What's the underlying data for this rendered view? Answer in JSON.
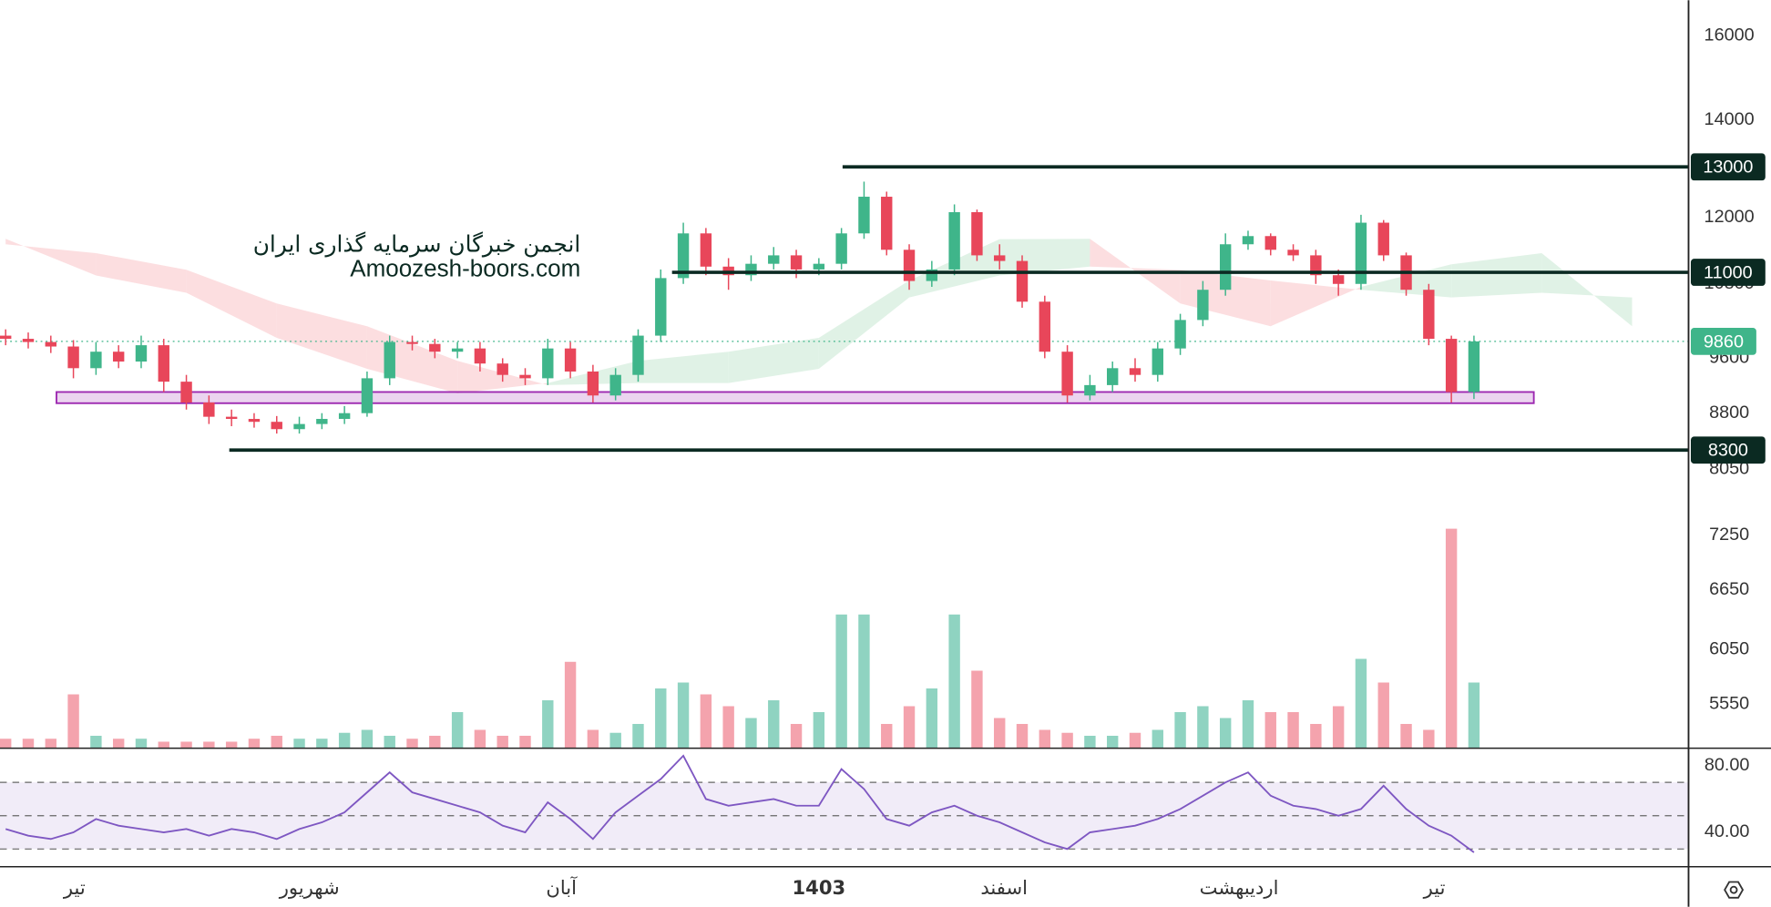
{
  "chart_data": {
    "type": "candlestick",
    "xlim": [
      -0.25,
      74.5
    ],
    "x_labels": [
      {
        "value": 3.05,
        "label": "تیر"
      },
      {
        "value": 13.45,
        "label": "شهریور"
      },
      {
        "value": 24.6,
        "label": "آبان"
      },
      {
        "value": 36,
        "label": "1403",
        "bold": true
      },
      {
        "value": 44.2,
        "label": "اسفند"
      },
      {
        "value": 54.6,
        "label": "اردیبهشت"
      },
      {
        "value": 63.25,
        "label": "تیر"
      }
    ],
    "ylim": [
      5180,
      16930
    ],
    "log_scale": true,
    "yticks": [
      5550,
      6050,
      6650,
      7250,
      8050,
      8800,
      9600,
      10800,
      12000,
      14000,
      16000
    ],
    "up_color": "#3fb58a",
    "down_color": "#e8465a",
    "open": [
      9950,
      9900,
      9850,
      9780,
      9450,
      9700,
      9550,
      9800,
      9250,
      8950,
      8750,
      8720,
      8680,
      8580,
      8650,
      8720,
      8800,
      9300,
      9850,
      9820,
      9700,
      9750,
      9520,
      9350,
      9300,
      9750,
      9400,
      9050,
      9350,
      9950,
      10900,
      11700,
      11100,
      10950,
      11150,
      11300,
      11050,
      11150,
      11700,
      12400,
      11400,
      10850,
      11050,
      12100,
      11300,
      11200,
      10500,
      9700,
      9050,
      9200,
      9450,
      9350,
      9750,
      10200,
      10700,
      11500,
      11650,
      11400,
      11300,
      10950,
      10800,
      11900,
      11300,
      10700,
      9900,
      9100
    ],
    "high": [
      10050,
      10000,
      9950,
      9880,
      9850,
      9800,
      9950,
      9900,
      9350,
      9050,
      8850,
      8800,
      8760,
      8750,
      8800,
      8900,
      9400,
      9950,
      9950,
      9900,
      9850,
      9850,
      9600,
      9450,
      9900,
      9850,
      9500,
      9450,
      10050,
      11050,
      11900,
      11800,
      11250,
      11300,
      11450,
      11400,
      11250,
      11800,
      12700,
      12500,
      11500,
      11200,
      12250,
      12150,
      11500,
      11300,
      10600,
      9800,
      9350,
      9550,
      9600,
      9850,
      10300,
      10850,
      11700,
      11750,
      11700,
      11500,
      11400,
      11050,
      12050,
      11950,
      11350,
      10800,
      9950,
      9950
    ],
    "low": [
      9800,
      9750,
      9680,
      9300,
      9350,
      9450,
      9450,
      9100,
      8850,
      8650,
      8620,
      8600,
      8520,
      8520,
      8580,
      8650,
      8750,
      9200,
      9720,
      9600,
      9600,
      9400,
      9250,
      9200,
      9200,
      9300,
      8950,
      8980,
      9250,
      9850,
      10800,
      10950,
      10700,
      10850,
      11050,
      10900,
      10950,
      11050,
      11600,
      11300,
      10700,
      10750,
      10950,
      11200,
      11050,
      10400,
      9600,
      8950,
      8980,
      9100,
      9250,
      9250,
      9650,
      10100,
      10600,
      11400,
      11300,
      11200,
      10800,
      10600,
      10700,
      11200,
      10600,
      9800,
      8950,
      9000
    ],
    "close": [
      9900,
      9850,
      9780,
      9450,
      9700,
      9550,
      9800,
      9250,
      8950,
      8750,
      8720,
      8680,
      8580,
      8650,
      8720,
      8800,
      9300,
      9850,
      9820,
      9700,
      9750,
      9520,
      9350,
      9300,
      9750,
      9400,
      9050,
      9350,
      9950,
      10900,
      11700,
      11100,
      10950,
      11150,
      11300,
      11050,
      11150,
      11700,
      12400,
      11400,
      10850,
      11050,
      12100,
      11300,
      11200,
      10500,
      9700,
      9050,
      9200,
      9450,
      9350,
      9750,
      10200,
      10700,
      11500,
      11650,
      11400,
      11300,
      10950,
      10800,
      11900,
      11300,
      10700,
      9900,
      9100,
      9860
    ],
    "volume_lim": [
      0,
      100
    ],
    "volume_up_color": "#8fd3c1",
    "volume_down_color": "#f4a3ad",
    "volume": [
      3,
      3,
      3,
      18,
      4,
      3,
      3,
      2,
      2,
      2,
      2,
      3,
      4,
      3,
      3,
      5,
      6,
      4,
      3,
      4,
      12,
      6,
      4,
      4,
      16,
      29,
      6,
      5,
      8,
      20,
      22,
      18,
      14,
      10,
      16,
      8,
      12,
      45,
      45,
      8,
      14,
      20,
      45,
      26,
      10,
      8,
      6,
      5,
      4,
      4,
      5,
      6,
      12,
      14,
      10,
      16,
      12,
      12,
      8,
      14,
      30,
      22,
      8,
      6,
      74,
      22
    ],
    "cloud": {
      "x": [
        0,
        4,
        8,
        12,
        16,
        20,
        24,
        28,
        32,
        36,
        40,
        44,
        48,
        52,
        56,
        60,
        64,
        68,
        72
      ],
      "span_a": [
        11600,
        10945,
        10650,
        9915,
        9440,
        9082,
        9230,
        9560,
        9700,
        9915,
        10858,
        11593,
        11600,
        10470,
        10100,
        10750,
        11140,
        11340,
        10100
      ],
      "span_b": [
        11500,
        11340,
        11045,
        10470,
        10100,
        9560,
        9200,
        9230,
        9230,
        9440,
        10570,
        10945,
        11100,
        11045,
        10858,
        10700,
        10570,
        10650,
        10570
      ],
      "up_color": "#d6eedd",
      "down_color": "#fbd3d6"
    },
    "levels": [
      {
        "value": 13000,
        "start": 37.05
      },
      {
        "value": 11000,
        "start": 29.5
      },
      {
        "value": 8300,
        "start": 9.9
      }
    ],
    "level_color": "#0b2a22",
    "last_price": {
      "value": 9860,
      "color": "#3fb58a"
    },
    "zone": {
      "low": 8940,
      "high": 9100,
      "start": 2.25,
      "end": 67.65,
      "color": "#9c27b0"
    },
    "watermark": [
      "انجمن خبرگان سرمایه گذاری ایران",
      "Amoozesh-boors.com"
    ],
    "rsi": {
      "values": [
        42,
        38,
        36,
        40,
        48,
        44,
        42,
        40,
        42,
        38,
        42,
        40,
        36,
        42,
        46,
        52,
        64,
        76,
        64,
        60,
        56,
        52,
        44,
        40,
        58,
        48,
        36,
        52,
        62,
        72,
        86,
        60,
        56,
        58,
        60,
        56,
        56,
        78,
        66,
        48,
        44,
        52,
        56,
        50,
        46,
        40,
        34,
        30,
        40,
        42,
        44,
        48,
        54,
        62,
        70,
        76,
        62,
        56,
        54,
        50,
        54,
        68,
        54,
        44,
        38,
        28
      ],
      "ylim": [
        19.7,
        90.2
      ],
      "yticks": [
        {
          "value": 80,
          "label": "80.00"
        },
        {
          "value": 40,
          "label": "40.00"
        }
      ],
      "levels": [
        70,
        50,
        30
      ],
      "band": [
        30,
        70
      ],
      "color": "#7e57c2"
    }
  }
}
